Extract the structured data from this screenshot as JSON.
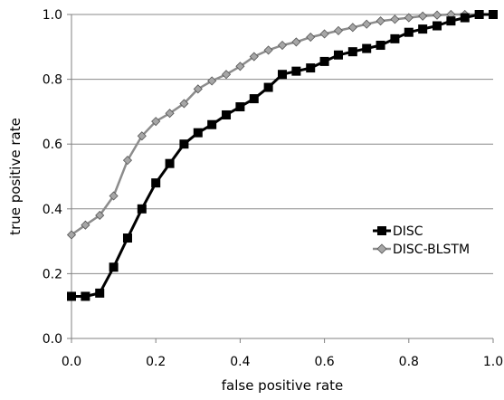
{
  "chart_data": {
    "type": "line",
    "xlabel": "false positive rate",
    "ylabel": "true positive rate",
    "xlim": [
      0.0,
      1.0
    ],
    "ylim": [
      0.0,
      1.0
    ],
    "xticks": [
      "0.0",
      "0.2",
      "0.4",
      "0.6",
      "0.8",
      "1.0"
    ],
    "yticks": [
      "0.0",
      "0.2",
      "0.4",
      "0.6",
      "0.8",
      "1.0"
    ],
    "grid": "horizontal",
    "legend_position": "right",
    "series": [
      {
        "name": "DISC",
        "color": "#000000",
        "marker": "square",
        "x": [
          0.0,
          0.033,
          0.067,
          0.1,
          0.133,
          0.167,
          0.2,
          0.233,
          0.267,
          0.3,
          0.333,
          0.367,
          0.4,
          0.433,
          0.467,
          0.5,
          0.533,
          0.567,
          0.6,
          0.633,
          0.667,
          0.7,
          0.733,
          0.767,
          0.8,
          0.833,
          0.867,
          0.9,
          0.933,
          0.967,
          1.0
        ],
        "y": [
          0.13,
          0.13,
          0.14,
          0.22,
          0.31,
          0.4,
          0.48,
          0.54,
          0.6,
          0.635,
          0.66,
          0.69,
          0.715,
          0.74,
          0.775,
          0.815,
          0.825,
          0.835,
          0.855,
          0.875,
          0.885,
          0.895,
          0.905,
          0.925,
          0.945,
          0.955,
          0.965,
          0.98,
          0.99,
          1.0,
          1.0
        ]
      },
      {
        "name": "DISC-BLSTM",
        "color": "#8c8c8c",
        "marker": "diamond",
        "x": [
          0.0,
          0.033,
          0.067,
          0.1,
          0.133,
          0.167,
          0.2,
          0.233,
          0.267,
          0.3,
          0.333,
          0.367,
          0.4,
          0.433,
          0.467,
          0.5,
          0.533,
          0.567,
          0.6,
          0.633,
          0.667,
          0.7,
          0.733,
          0.767,
          0.8,
          0.833,
          0.867,
          0.9,
          0.933,
          0.967,
          1.0
        ],
        "y": [
          0.32,
          0.35,
          0.38,
          0.44,
          0.55,
          0.625,
          0.67,
          0.695,
          0.725,
          0.77,
          0.795,
          0.815,
          0.84,
          0.87,
          0.89,
          0.905,
          0.915,
          0.93,
          0.94,
          0.95,
          0.96,
          0.97,
          0.98,
          0.985,
          0.99,
          0.995,
          0.998,
          1.0,
          1.0,
          1.0,
          1.0
        ]
      }
    ]
  }
}
